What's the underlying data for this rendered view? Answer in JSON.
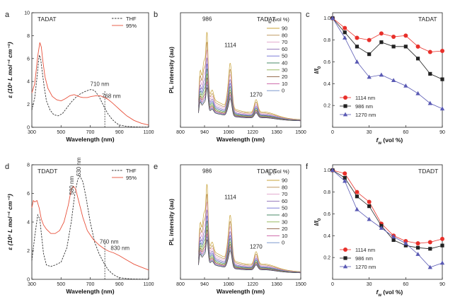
{
  "colors": {
    "thf": "#333333",
    "water95": "#e8503a",
    "s1114": "#e8302a",
    "s986": "#222222",
    "s1270": "#5a5ab4",
    "cutoff": "#333333",
    "pl": [
      "#c8a33a",
      "#b88a4a",
      "#e0a0c8",
      "#8a6ab4",
      "#6a6ad4",
      "#4a8a6a",
      "#8ab04a",
      "#8a5a3a",
      "#c85aa0",
      "#6a8ac8",
      "#444444"
    ]
  },
  "chart_data": [
    {
      "panel": "a",
      "type": "line",
      "title": "TADAT",
      "xlabel": "Wavelength (nm)",
      "ylabel": "ε (10⁵ L mol⁻¹ cm⁻¹)",
      "xlim": [
        300,
        1100
      ],
      "ylim": [
        0,
        10
      ],
      "xticks": [
        300,
        500,
        700,
        900,
        1100
      ],
      "yticks": [
        0,
        2,
        4,
        6,
        8,
        10
      ],
      "legend": "top-right",
      "cutoff_x": 800,
      "annotations": [
        {
          "text": "710 nm",
          "x": 700,
          "y": 3.6,
          "color": "#333333"
        },
        {
          "text": "768 nm",
          "x": 780,
          "y": 2.55,
          "color": "#e8503a"
        }
      ],
      "series": [
        {
          "name": "THF",
          "style": "dashed",
          "color": "#333333",
          "x": [
            300,
            320,
            335,
            345,
            352,
            360,
            370,
            385,
            400,
            425,
            450,
            480,
            510,
            540,
            570,
            600,
            630,
            660,
            690,
            710,
            730,
            760,
            790,
            820,
            850,
            880,
            900,
            950,
            1000,
            1050,
            1100
          ],
          "y": [
            1.5,
            2.6,
            4.3,
            5.7,
            6.3,
            6.0,
            5.0,
            3.5,
            2.3,
            1.5,
            1.1,
            1.0,
            1.2,
            1.7,
            2.2,
            2.6,
            2.9,
            3.1,
            3.25,
            3.3,
            3.2,
            2.7,
            1.9,
            1.2,
            0.7,
            0.35,
            0.2,
            0.08,
            0.04,
            0.02,
            0.02
          ]
        },
        {
          "name": "95%",
          "style": "solid",
          "color": "#e8503a",
          "x": [
            300,
            320,
            340,
            355,
            365,
            375,
            390,
            410,
            440,
            470,
            500,
            530,
            560,
            590,
            610,
            630,
            650,
            680,
            710,
            740,
            768,
            790,
            820,
            850,
            880,
            910,
            950,
            1000,
            1050,
            1100
          ],
          "y": [
            3.0,
            3.8,
            6.2,
            7.4,
            7.0,
            5.8,
            4.4,
            3.4,
            2.7,
            2.4,
            2.3,
            2.5,
            2.75,
            2.85,
            2.75,
            2.65,
            2.6,
            2.6,
            2.7,
            2.75,
            2.75,
            2.65,
            2.45,
            2.15,
            1.8,
            1.45,
            1.0,
            0.6,
            0.35,
            0.2
          ]
        }
      ]
    },
    {
      "panel": "b",
      "type": "line",
      "title": "TADAT",
      "xlabel": "Wavelength (nm)",
      "ylabel": "PL intensity (au)",
      "xlim": [
        800,
        1500
      ],
      "xticks": [
        800,
        940,
        1080,
        1220,
        1360,
        1500
      ],
      "ylim": [
        0,
        1
      ],
      "legend_title": "f_w (vol %)",
      "legend": [
        "90",
        "80",
        "70",
        "60",
        "50",
        "40",
        "30",
        "20",
        "10",
        "0"
      ],
      "peak_labels": [
        {
          "text": "986",
          "x": 955
        },
        {
          "text": "1114",
          "x": 1090
        },
        {
          "text": "1270",
          "x": 1240
        }
      ]
    },
    {
      "panel": "c",
      "type": "line",
      "title": "TADAT",
      "xlabel": "f_w (vol %)",
      "ylabel": "I/I₀",
      "xlim": [
        0,
        90
      ],
      "ylim": [
        0.0,
        1.05
      ],
      "xticks": [
        0,
        30,
        60,
        90
      ],
      "yticks": [
        0.2,
        0.4,
        0.6,
        0.8,
        1.0
      ],
      "legend": "bottom-left",
      "x": [
        0,
        10,
        20,
        30,
        40,
        50,
        60,
        70,
        80,
        90
      ],
      "series": [
        {
          "name": "1114 nm",
          "marker": "circle",
          "color": "#e8302a",
          "values": [
            1.0,
            0.91,
            0.82,
            0.8,
            0.86,
            0.83,
            0.84,
            0.74,
            0.69,
            0.7
          ]
        },
        {
          "name": "986 nm",
          "marker": "square",
          "color": "#222222",
          "values": [
            1.0,
            0.87,
            0.74,
            0.67,
            0.78,
            0.74,
            0.74,
            0.63,
            0.49,
            0.44
          ]
        },
        {
          "name": "1270 nm",
          "marker": "triangle",
          "color": "#5a5ab4",
          "values": [
            1.0,
            0.82,
            0.6,
            0.46,
            0.48,
            0.43,
            0.38,
            0.31,
            0.22,
            0.17
          ]
        }
      ]
    },
    {
      "panel": "d",
      "type": "line",
      "title": "TDADT",
      "xlabel": "Wavelength (nm)",
      "ylabel": "ε (10⁴ L mol⁻¹ cm⁻¹)",
      "xlim": [
        300,
        1100
      ],
      "ylim": [
        0,
        8
      ],
      "xticks": [
        300,
        500,
        700,
        900,
        1100
      ],
      "yticks": [
        0,
        2,
        4,
        6,
        8
      ],
      "legend": "top-right",
      "cutoff_x": 800,
      "annotations": [
        {
          "text": "580 nm",
          "x": 585,
          "y": 5.9,
          "rotate": true,
          "color": "#c86aa0"
        },
        {
          "text": "630 nm",
          "x": 635,
          "y": 7.2,
          "rotate": true,
          "color": "#888888"
        },
        {
          "text": "760 nm",
          "x": 765,
          "y": 2.5,
          "color": "#333333"
        },
        {
          "text": "830 nm",
          "x": 840,
          "y": 2.05,
          "color": "#e8503a"
        }
      ],
      "series": [
        {
          "name": "THF",
          "style": "dashed",
          "color": "#333333",
          "x": [
            300,
            320,
            340,
            355,
            365,
            380,
            400,
            430,
            460,
            500,
            540,
            570,
            595,
            615,
            630,
            650,
            670,
            700,
            730,
            760,
            790,
            820,
            850,
            880,
            900,
            950,
            1000,
            1100
          ],
          "y": [
            1.3,
            3.0,
            4.5,
            4.2,
            3.2,
            1.8,
            1.0,
            0.9,
            1.0,
            1.2,
            2.2,
            4.0,
            6.0,
            7.0,
            7.2,
            6.8,
            5.8,
            4.0,
            2.6,
            1.8,
            1.2,
            0.7,
            0.4,
            0.2,
            0.12,
            0.05,
            0.02,
            0.01
          ]
        },
        {
          "name": "95%",
          "style": "solid",
          "color": "#e8503a",
          "x": [
            300,
            310,
            320,
            335,
            350,
            365,
            380,
            400,
            430,
            460,
            490,
            520,
            550,
            570,
            585,
            600,
            620,
            650,
            680,
            720,
            760,
            800,
            830,
            860,
            900,
            950,
            1000,
            1050,
            1100
          ],
          "y": [
            5.0,
            5.5,
            5.4,
            5.5,
            5.0,
            4.2,
            3.8,
            3.5,
            3.2,
            3.2,
            3.4,
            4.0,
            5.2,
            6.3,
            6.5,
            6.3,
            5.5,
            4.3,
            3.4,
            2.8,
            2.4,
            2.1,
            1.95,
            1.85,
            1.65,
            1.35,
            1.05,
            0.85,
            0.65
          ]
        }
      ]
    },
    {
      "panel": "e",
      "type": "line",
      "title": "TDADT",
      "xlabel": "Wavelength (nm)",
      "ylabel": "PL intensity (au)",
      "xlim": [
        800,
        1500
      ],
      "xticks": [
        800,
        940,
        1080,
        1220,
        1360,
        1500
      ],
      "ylim": [
        0,
        1
      ],
      "legend_title": "f_w (vol %)",
      "legend": [
        "90",
        "80",
        "70",
        "60",
        "50",
        "40",
        "30",
        "20",
        "10",
        "0"
      ],
      "peak_labels": [
        {
          "text": "986",
          "x": 955
        },
        {
          "text": "1114",
          "x": 1090
        },
        {
          "text": "1270",
          "x": 1240
        }
      ]
    },
    {
      "panel": "f",
      "type": "line",
      "title": "TDADT",
      "xlabel": "f_w (vol %)",
      "ylabel": "I/I₀",
      "xlim": [
        0,
        90
      ],
      "ylim": [
        0.0,
        1.05
      ],
      "xticks": [
        0,
        30,
        60,
        90
      ],
      "yticks": [
        0.2,
        0.4,
        0.6,
        0.8,
        1.0
      ],
      "legend": "bottom-left",
      "x": [
        0,
        10,
        20,
        30,
        40,
        50,
        60,
        70,
        80,
        90
      ],
      "series": [
        {
          "name": "1114 nm",
          "marker": "circle",
          "color": "#e8302a",
          "values": [
            1.0,
            0.97,
            0.8,
            0.71,
            0.51,
            0.4,
            0.35,
            0.33,
            0.34,
            0.37
          ]
        },
        {
          "name": "986 nm",
          "marker": "square",
          "color": "#222222",
          "values": [
            1.0,
            0.93,
            0.76,
            0.67,
            0.49,
            0.36,
            0.31,
            0.29,
            0.28,
            0.31
          ]
        },
        {
          "name": "1270 nm",
          "marker": "triangle",
          "color": "#5a5ab4",
          "values": [
            1.0,
            0.9,
            0.64,
            0.55,
            0.47,
            0.39,
            0.33,
            0.23,
            0.11,
            0.15
          ]
        }
      ]
    }
  ]
}
